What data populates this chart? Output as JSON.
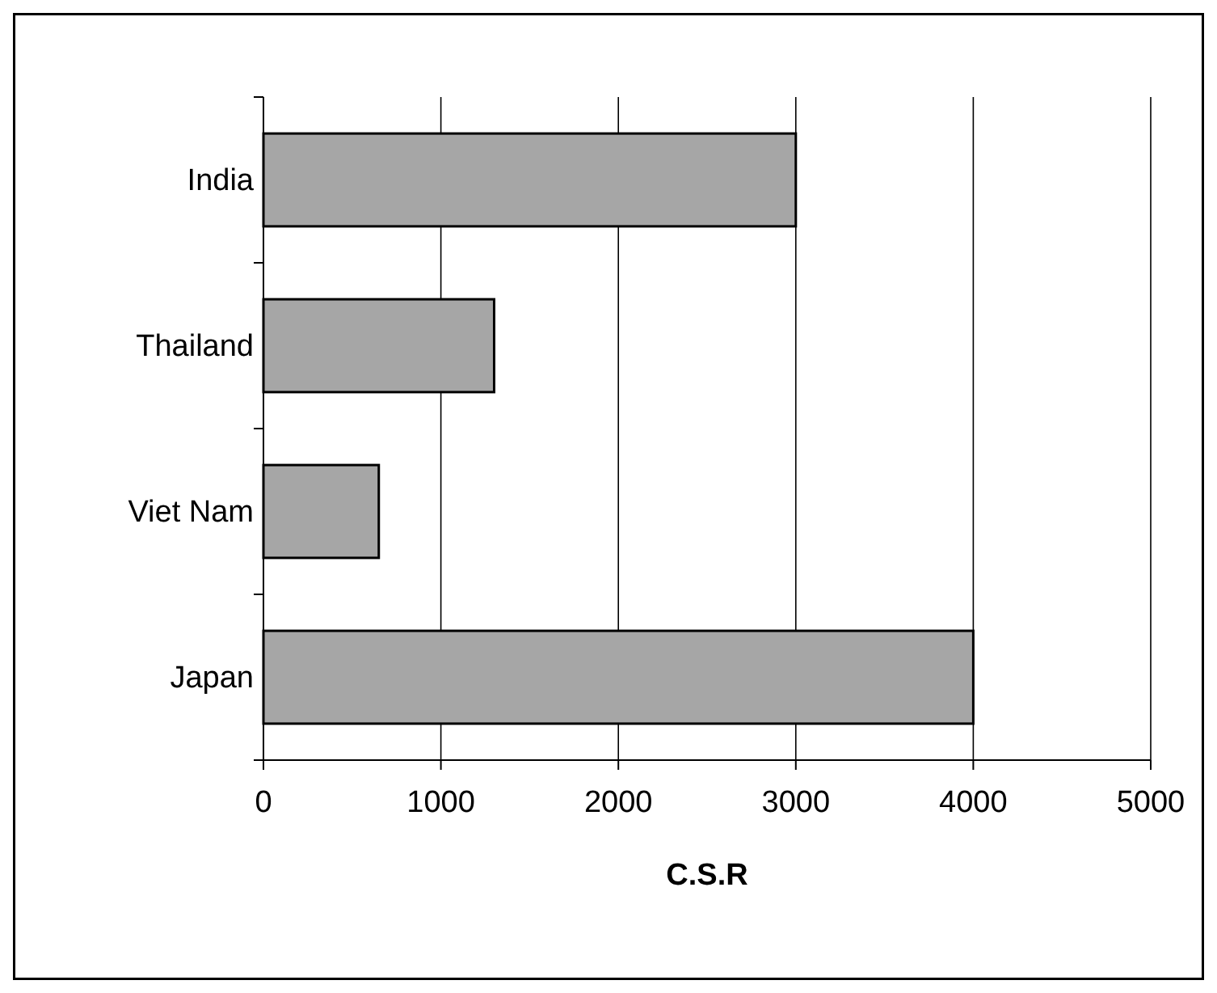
{
  "chart_data": {
    "type": "bar",
    "orientation": "horizontal",
    "xlabel": "C.S.R",
    "categories": [
      "India",
      "Thailand",
      "Viet Nam",
      "Japan"
    ],
    "values": [
      3000,
      1300,
      650,
      4000
    ],
    "color": "#a6a6a6",
    "xlim": [
      0,
      5000
    ],
    "xticks": [
      0,
      1000,
      2000,
      3000,
      4000,
      5000
    ],
    "grid": "x"
  }
}
